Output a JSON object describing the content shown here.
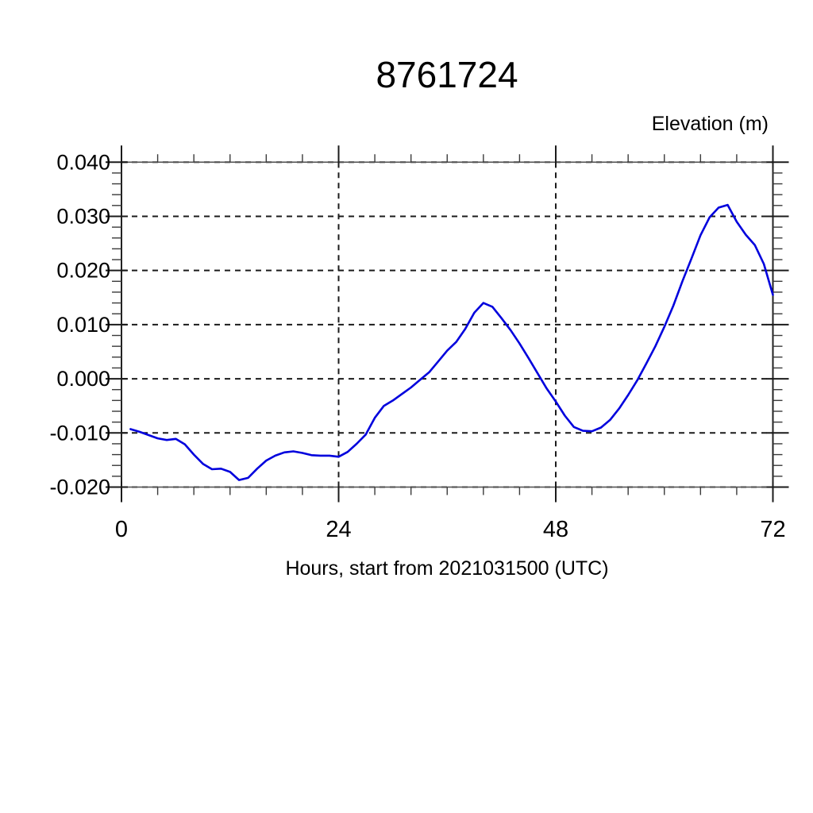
{
  "page": {
    "background_color": "#ffffff"
  },
  "chart": {
    "line_color": "#0000dd",
    "frame_color": "#555555",
    "grid_color": "#1b1b1b",
    "major_tick_color": "#1b1b1b",
    "minor_tick_color": "#3a3a3a",
    "grid_style": "dashed"
  },
  "chart_data": {
    "type": "line",
    "title": "8761724",
    "ylabel": "Elevation (m)",
    "xlabel": "Hours, start from 2021031500 (UTC)",
    "xlim": [
      0,
      72
    ],
    "ylim": [
      -0.02,
      0.04
    ],
    "x_major_ticks": [
      0,
      24,
      48,
      72
    ],
    "x_tick_labels": [
      "0",
      "24",
      "48",
      "72"
    ],
    "x_minor_step": 4,
    "y_major_ticks": [
      -0.02,
      -0.01,
      0.0,
      0.01,
      0.02,
      0.03,
      0.04
    ],
    "y_tick_labels": [
      "-0.020",
      "-0.010",
      "0.000",
      "0.010",
      "0.020",
      "0.030",
      "0.040"
    ],
    "y_minor_step": 0.002,
    "grid": "dashed-at-major-ticks",
    "legend": "none",
    "series": [
      {
        "name": "elevation",
        "color": "#0000dd",
        "x": [
          1,
          2,
          3,
          4,
          5,
          6,
          7,
          8,
          9,
          10,
          11,
          12,
          13,
          14,
          15,
          16,
          17,
          18,
          19,
          20,
          21,
          22,
          23,
          24,
          25,
          26,
          27,
          28,
          29,
          30,
          31,
          32,
          33,
          34,
          35,
          36,
          37,
          38,
          39,
          40,
          41,
          42,
          43,
          44,
          45,
          46,
          47,
          48,
          49,
          50,
          51,
          52,
          53,
          54,
          55,
          56,
          57,
          58,
          59,
          60,
          61,
          62,
          63,
          64,
          65,
          66,
          67,
          68,
          69,
          70,
          71,
          72
        ],
        "y": [
          -0.0093,
          -0.0098,
          -0.0104,
          -0.011,
          -0.0113,
          -0.0111,
          -0.0121,
          -0.014,
          -0.0157,
          -0.0167,
          -0.0166,
          -0.0172,
          -0.0187,
          -0.0183,
          -0.0166,
          -0.0151,
          -0.0142,
          -0.0136,
          -0.0134,
          -0.0137,
          -0.0141,
          -0.0142,
          -0.0142,
          -0.0144,
          -0.0135,
          -0.012,
          -0.0103,
          -0.0072,
          -0.005,
          -0.004,
          -0.0028,
          -0.0016,
          -0.0002,
          0.0012,
          0.0032,
          0.0052,
          0.0068,
          0.0092,
          0.0122,
          0.014,
          0.0133,
          0.0112,
          0.009,
          0.0065,
          0.0038,
          0.001,
          -0.0018,
          -0.0042,
          -0.0068,
          -0.0089,
          -0.0096,
          -0.0097,
          -0.009,
          -0.0076,
          -0.0055,
          -0.003,
          -0.0003,
          0.0028,
          0.006,
          0.0096,
          0.0135,
          0.018,
          0.0222,
          0.0265,
          0.0298,
          0.0316,
          0.0321,
          0.029,
          0.0266,
          0.0247,
          0.0212,
          0.0155
        ]
      }
    ]
  }
}
